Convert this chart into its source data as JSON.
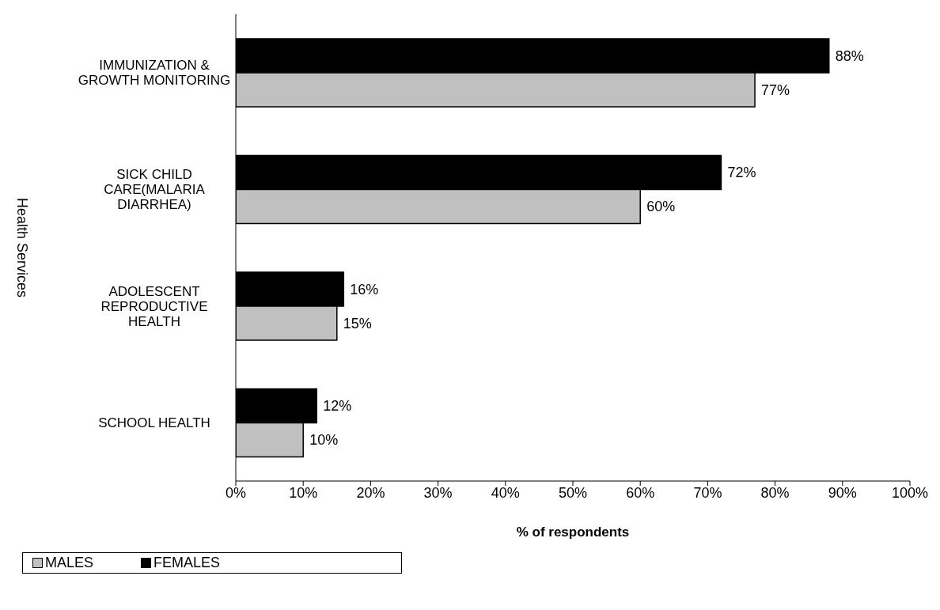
{
  "chart_data": {
    "type": "bar",
    "orientation": "horizontal",
    "xlabel": "% of respondents",
    "ylabel": "Health Services",
    "categories": [
      "IMMUNIZATION & GROWTH MONITORING",
      "SICK CHILD CARE(MALARIA DIARRHEA)",
      "ADOLESCENT REPRODUCTIVE HEALTH",
      "SCHOOL HEALTH"
    ],
    "series": [
      {
        "name": "MALES",
        "color": "#c0c0c0",
        "values": [
          77,
          60,
          15,
          10
        ],
        "value_labels": [
          "77%",
          "60%",
          "15%",
          "10%"
        ]
      },
      {
        "name": "FEMALES",
        "color": "#000000",
        "values": [
          88,
          72,
          16,
          12
        ],
        "value_labels": [
          "88%",
          "72%",
          "16%",
          "12%"
        ]
      }
    ],
    "xlim": [
      0,
      100
    ],
    "xticks": [
      {
        "value": 0,
        "label": "0%"
      },
      {
        "value": 10,
        "label": "10%"
      },
      {
        "value": 20,
        "label": "20%"
      },
      {
        "value": 30,
        "label": "30%"
      },
      {
        "value": 40,
        "label": "40%"
      },
      {
        "value": 50,
        "label": "50%"
      },
      {
        "value": 60,
        "label": "60%"
      },
      {
        "value": 70,
        "label": "70%"
      },
      {
        "value": 80,
        "label": "80%"
      },
      {
        "value": 90,
        "label": "90%"
      },
      {
        "value": 100,
        "label": "100%"
      }
    ],
    "legend": "bottom"
  }
}
